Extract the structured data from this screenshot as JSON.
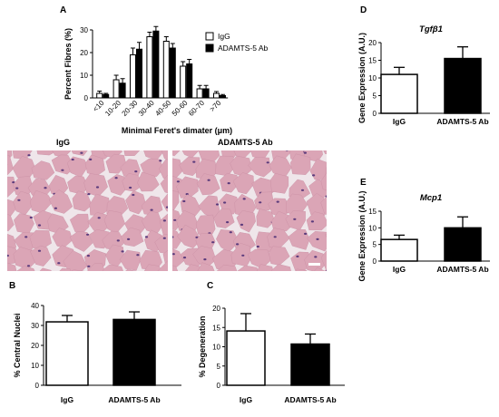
{
  "colors": {
    "igg": "#ffffff",
    "ab": "#000000",
    "stroke": "#000000",
    "tissue": "#dba5b6",
    "gap": "#efe6ea",
    "nucleus": "#5b3b7c"
  },
  "panel_labels": {
    "a": "A",
    "b": "B",
    "c": "C",
    "d": "D",
    "e": "E"
  },
  "images": {
    "left_title": "IgG",
    "right_title": "ADAMTS-5  Ab"
  },
  "chart_data": [
    {
      "id": "A",
      "type": "bar",
      "categories": [
        "<10",
        "10-20",
        "20-30",
        "30-40",
        "40-50",
        "50-60",
        "60-70",
        ">70"
      ],
      "series": [
        {
          "name": "IgG",
          "values": [
            2,
            8,
            19,
            27,
            25,
            14,
            4,
            2
          ],
          "errors": [
            1,
            2,
            3,
            2,
            2,
            2,
            1.5,
            0.8
          ]
        },
        {
          "name": "ADAMTS-5 Ab",
          "values": [
            1.5,
            6.5,
            21.5,
            29.5,
            22,
            15,
            4,
            1
          ],
          "errors": [
            0.5,
            2,
            3,
            2,
            2,
            2,
            1.5,
            0.5
          ]
        }
      ],
      "ylabel": "Percent Fibres (%)",
      "xlabel": "Minimal  Feret's dimater (μm)",
      "ylim": [
        0,
        30
      ],
      "yticks": [
        0,
        10,
        20,
        30
      ],
      "legend": "top-right",
      "grid": false
    },
    {
      "id": "B",
      "type": "bar",
      "categories": [
        "IgG",
        "ADAMTS-5 Ab"
      ],
      "values": [
        31.8,
        33
      ],
      "errors": [
        3.2,
        3.8
      ],
      "ylabel": "% Central Nuclei",
      "ylim": [
        0,
        40
      ],
      "yticks": [
        0,
        10,
        20,
        30,
        40
      ],
      "grid": false
    },
    {
      "id": "C",
      "type": "bar",
      "categories": [
        "IgG",
        "ADAMTS-5 Ab"
      ],
      "values": [
        14.1,
        10.7
      ],
      "errors": [
        4.5,
        2.6
      ],
      "ylabel": "% Degeneration",
      "ylim": [
        0,
        20
      ],
      "yticks": [
        0,
        5,
        10,
        15,
        20
      ],
      "grid": false
    },
    {
      "id": "D",
      "type": "bar",
      "title": "Tgfβ1",
      "categories": [
        "IgG",
        "ADAMTS-5 Ab"
      ],
      "values": [
        11,
        15.5
      ],
      "errors": [
        2,
        3.3
      ],
      "ylabel": "Gene Expression (A.U.)",
      "ylim": [
        0,
        20
      ],
      "yticks": [
        0,
        5,
        10,
        15,
        20
      ],
      "grid": false
    },
    {
      "id": "E",
      "type": "bar",
      "title": "Mcp1",
      "categories": [
        "IgG",
        "ADAMTS-5 Ab"
      ],
      "values": [
        6.5,
        10
      ],
      "errors": [
        1.3,
        3.3
      ],
      "ylabel": "Gene Expression (A.U.)",
      "ylim": [
        0,
        15
      ],
      "yticks": [
        0,
        5,
        10,
        15
      ],
      "grid": false
    }
  ]
}
